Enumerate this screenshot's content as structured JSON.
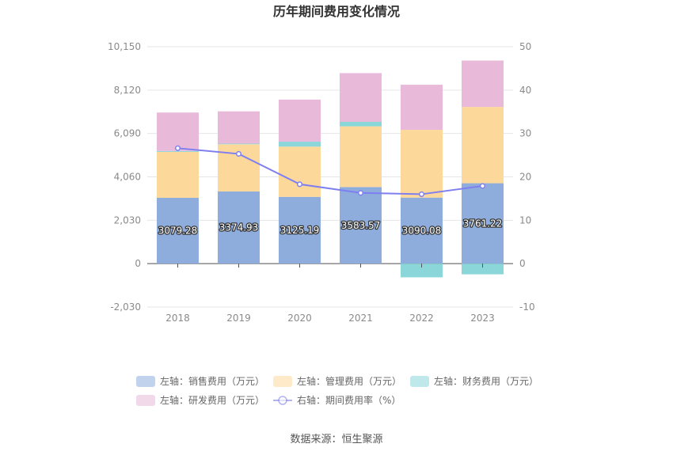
{
  "title": "历年期间费用变化情况",
  "source": "数据来源：恒生聚源",
  "left_axis": {
    "min": -2030,
    "max": 10150,
    "ticks": [
      "-2,030",
      "0",
      "2,030",
      "4,060",
      "6,090",
      "8,120",
      "10,150"
    ]
  },
  "right_axis": {
    "min": -10,
    "max": 50,
    "ticks": [
      "-10",
      "0",
      "10",
      "20",
      "30",
      "40",
      "50"
    ]
  },
  "chart_data": {
    "type": "bar",
    "stacked": true,
    "categories": [
      "2018",
      "2019",
      "2020",
      "2021",
      "2022",
      "2023"
    ],
    "series": [
      {
        "name": "左轴：销售费用（万元）",
        "axis": "left",
        "color": "#8eaddc",
        "values": [
          3079.28,
          3374.93,
          3125.19,
          3583.57,
          3090.08,
          3761.22
        ],
        "labels": [
          "3079.28",
          "3374.93",
          "3125.19",
          "3583.57",
          "3090.08",
          "3761.22"
        ]
      },
      {
        "name": "左轴：管理费用（万元）",
        "axis": "left",
        "color": "#fdd89b",
        "values": [
          2150,
          2210,
          2350,
          2840,
          3170,
          3570
        ]
      },
      {
        "name": "左轴：财务费用（万元）",
        "axis": "left",
        "color": "#8ad6d9",
        "values": [
          40,
          30,
          230,
          210,
          -640,
          -500
        ]
      },
      {
        "name": "左轴：研发费用（万元）",
        "axis": "left",
        "color": "#e8b9d9",
        "values": [
          1800,
          1510,
          1970,
          2280,
          2110,
          2170
        ]
      }
    ],
    "line_series": [
      {
        "name": "右轴：期间费用率（%）",
        "axis": "right",
        "color": "#7f7ff0",
        "values": [
          26.6,
          25.3,
          18.3,
          16.3,
          16.0,
          17.9
        ]
      }
    ],
    "legend_position": "bottom",
    "grid": true
  }
}
